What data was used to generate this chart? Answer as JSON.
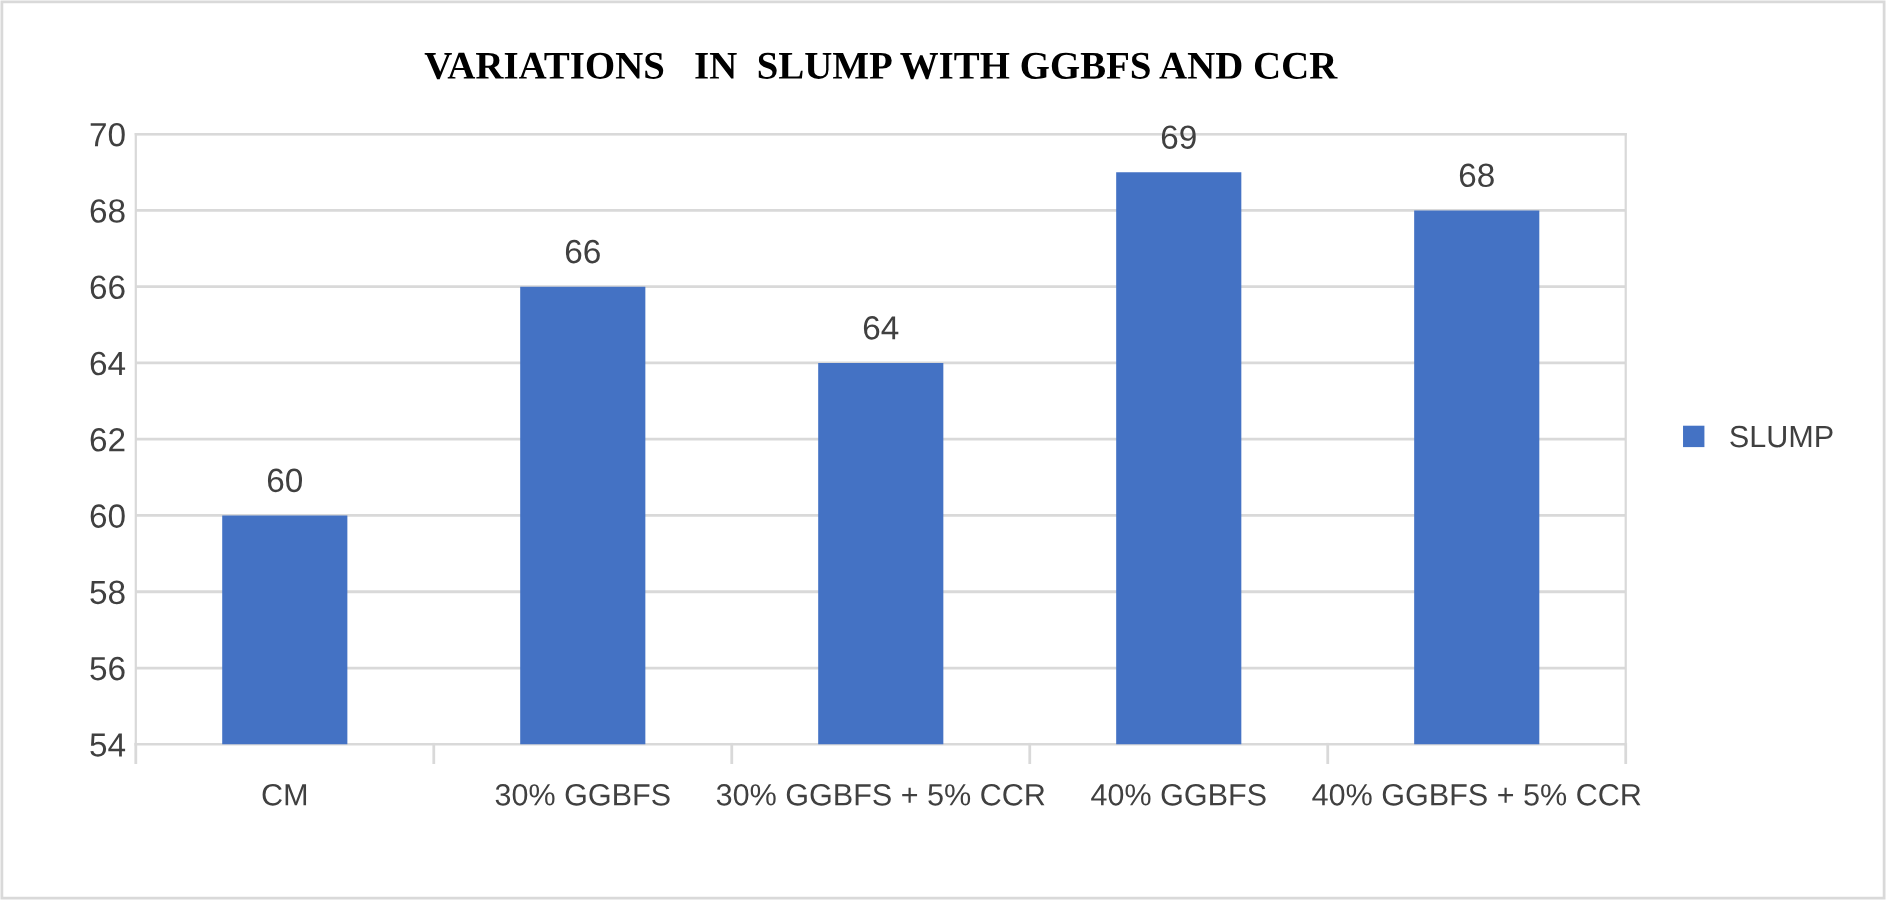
{
  "chart_data": {
    "type": "bar",
    "title": "VARIATIONS   IN  SLUMP WITH GGBFS AND CCR",
    "categories": [
      "CM",
      "30% GGBFS",
      "30% GGBFS + 5% CCR",
      "40% GGBFS",
      "40% GGBFS + 5% CCR"
    ],
    "series": [
      {
        "name": "SLUMP",
        "color": "#4472c4",
        "values": [
          60,
          66,
          64,
          69,
          68
        ]
      }
    ],
    "ylim": [
      54,
      70
    ],
    "yticks": [
      54,
      56,
      58,
      60,
      62,
      64,
      66,
      68,
      70
    ],
    "grid": "y",
    "legend": "right",
    "data_labels": true
  }
}
